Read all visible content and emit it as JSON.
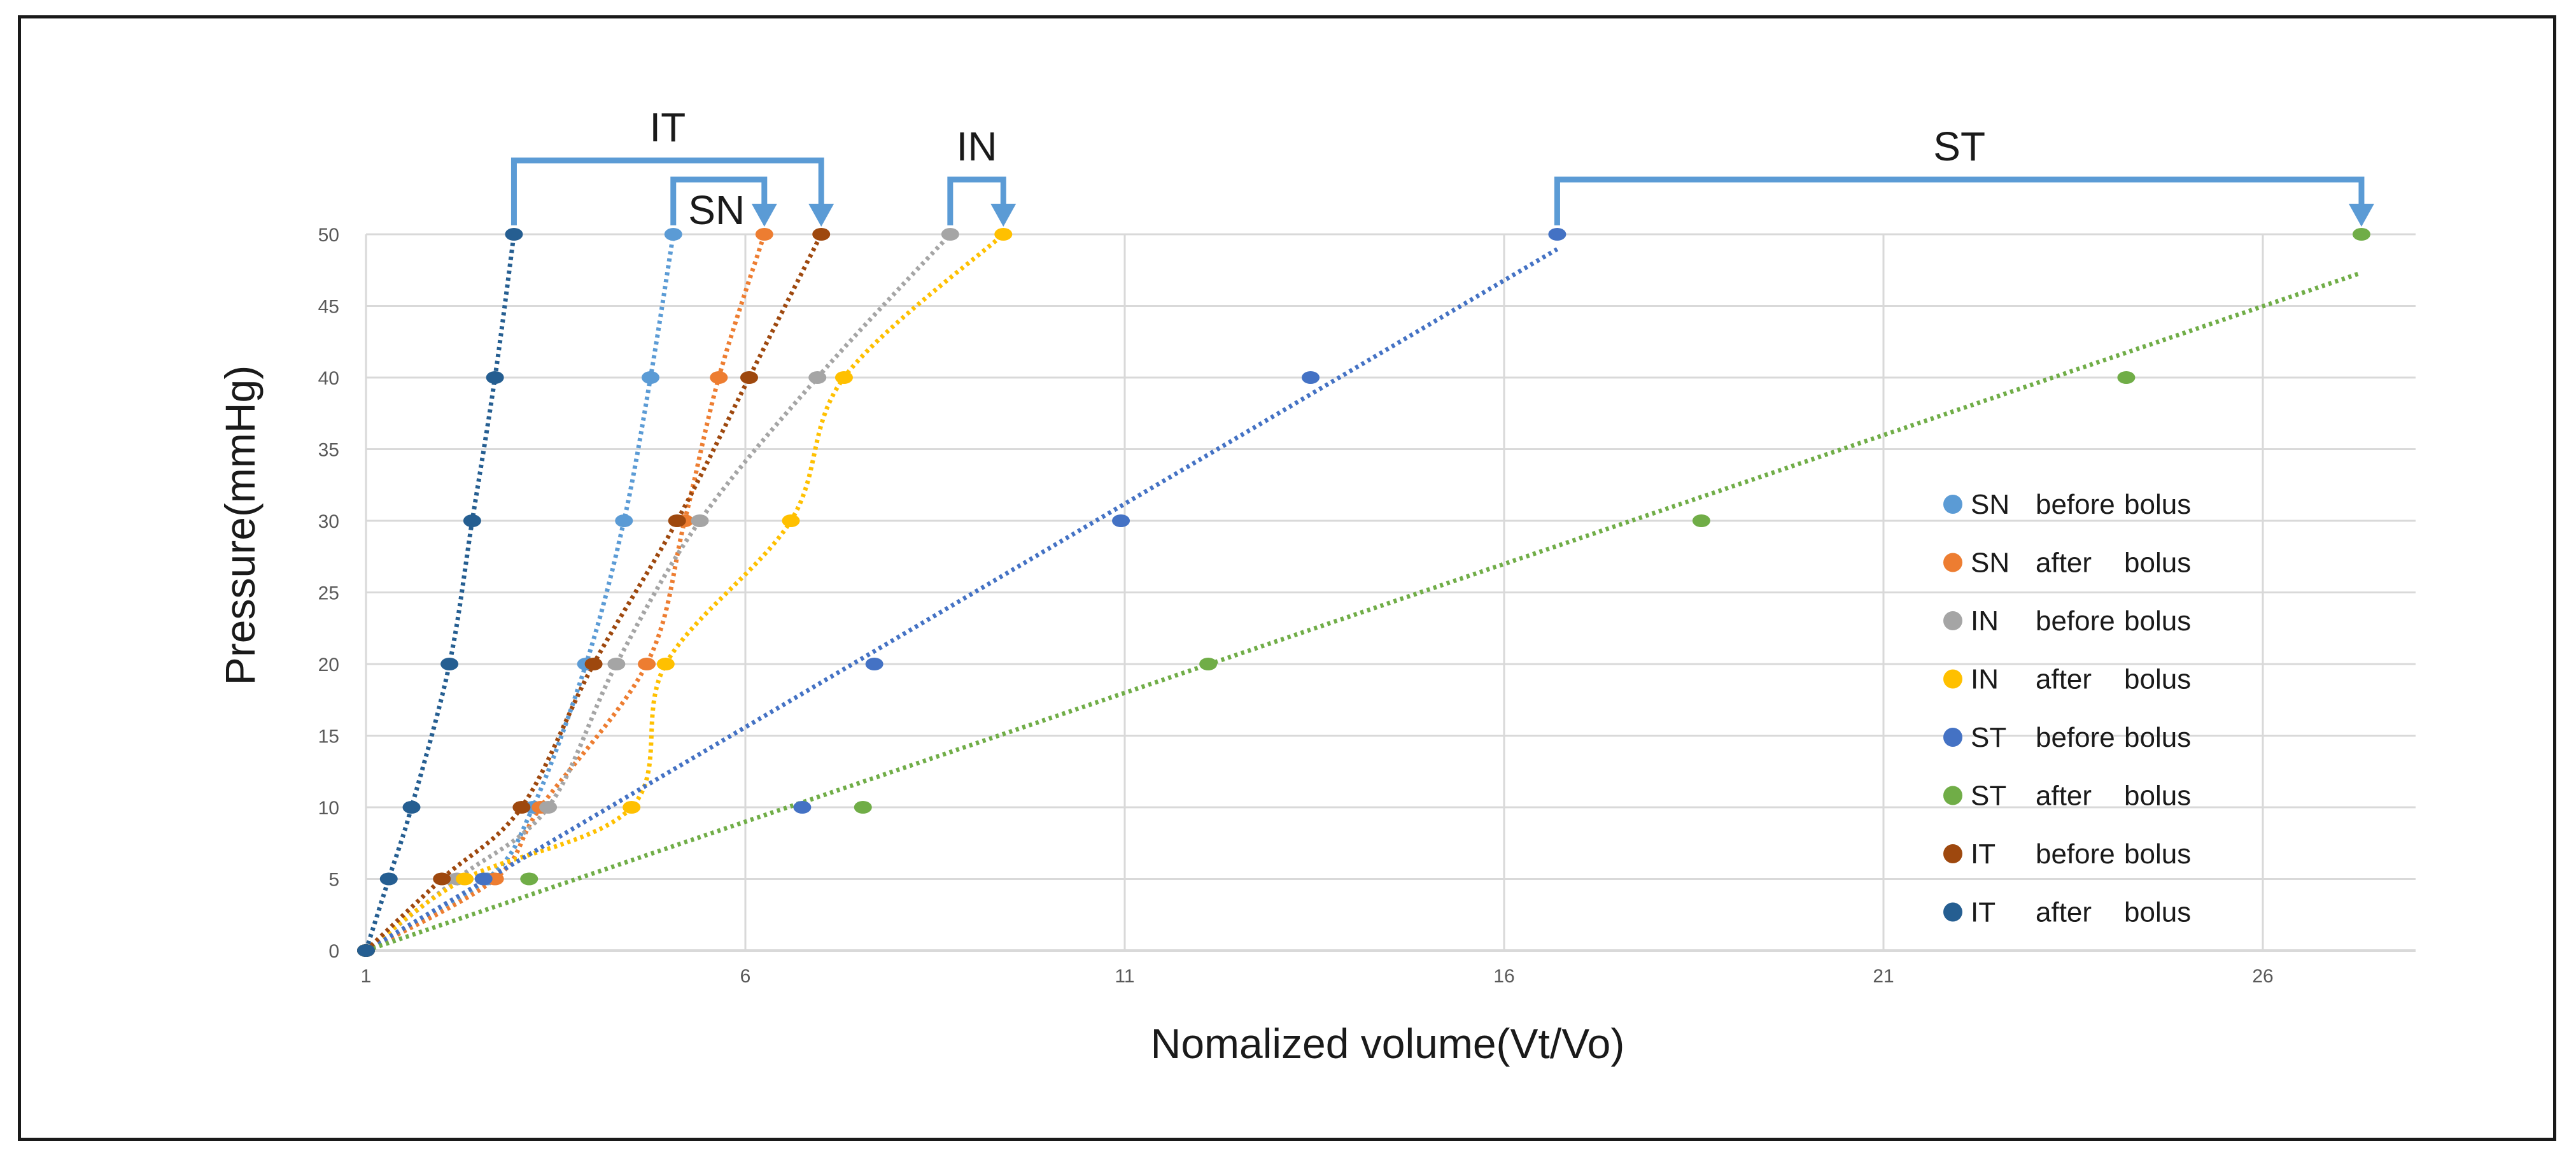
{
  "chart_data": {
    "type": "scatter",
    "title": "",
    "xlabel": "Nomalized volume(Vt/Vo)",
    "ylabel": "Pressure(mmHg)",
    "xlim": [
      1,
      27.5
    ],
    "ylim": [
      0,
      50
    ],
    "xticks": [
      1,
      6,
      11,
      16,
      21,
      26
    ],
    "yticks": [
      0,
      5,
      10,
      15,
      20,
      25,
      30,
      35,
      40,
      45,
      50
    ],
    "grid": true,
    "legend_position": "right",
    "series": [
      {
        "name": "SN before bolus",
        "legend": [
          "SN",
          "before",
          "bolus"
        ],
        "color": "#5b9bd5",
        "trend": "exponential",
        "points": [
          [
            1,
            0
          ],
          [
            2.6,
            5
          ],
          [
            3.2,
            10
          ],
          [
            3.9,
            20
          ],
          [
            4.4,
            30
          ],
          [
            4.75,
            40
          ],
          [
            5.05,
            50
          ]
        ]
      },
      {
        "name": "SN after bolus",
        "legend": [
          "SN",
          "after",
          "bolus"
        ],
        "color": "#ed7d31",
        "trend": "exponential",
        "points": [
          [
            1,
            0
          ],
          [
            2.7,
            5
          ],
          [
            3.3,
            10
          ],
          [
            4.7,
            20
          ],
          [
            5.2,
            30
          ],
          [
            5.65,
            40
          ],
          [
            6.25,
            50
          ]
        ]
      },
      {
        "name": "IN before bolus",
        "legend": [
          "IN",
          "before",
          "bolus"
        ],
        "color": "#a5a5a5",
        "trend": "exponential",
        "points": [
          [
            1,
            0
          ],
          [
            2.2,
            5
          ],
          [
            3.4,
            10
          ],
          [
            4.3,
            20
          ],
          [
            5.4,
            30
          ],
          [
            6.95,
            40
          ],
          [
            8.7,
            50
          ]
        ]
      },
      {
        "name": "IN after bolus",
        "legend": [
          "IN",
          "after",
          "bolus"
        ],
        "color": "#ffc000",
        "trend": "exponential",
        "points": [
          [
            1,
            0
          ],
          [
            2.3,
            5
          ],
          [
            4.5,
            10
          ],
          [
            4.95,
            20
          ],
          [
            6.6,
            30
          ],
          [
            7.3,
            40
          ],
          [
            9.4,
            50
          ]
        ]
      },
      {
        "name": "ST before bolus",
        "legend": [
          "ST",
          "before",
          "bolus"
        ],
        "color": "#4472c4",
        "trend": "linear",
        "points": [
          [
            1,
            0
          ],
          [
            2.55,
            5
          ],
          [
            6.75,
            10
          ],
          [
            7.7,
            20
          ],
          [
            10.95,
            30
          ],
          [
            13.45,
            40
          ],
          [
            16.7,
            50
          ]
        ]
      },
      {
        "name": "ST after bolus",
        "legend": [
          "ST",
          "after",
          "bolus"
        ],
        "color": "#70ad47",
        "trend": "linear",
        "points": [
          [
            1,
            0
          ],
          [
            3.15,
            5
          ],
          [
            7.55,
            10
          ],
          [
            12.1,
            20
          ],
          [
            18.6,
            30
          ],
          [
            24.2,
            40
          ],
          [
            27.3,
            50
          ]
        ]
      },
      {
        "name": "IT before bolus",
        "legend": [
          "IT",
          "before",
          "bolus"
        ],
        "color": "#9e480e",
        "trend": "exponential",
        "points": [
          [
            1,
            0
          ],
          [
            2.0,
            5
          ],
          [
            3.05,
            10
          ],
          [
            4.0,
            20
          ],
          [
            5.1,
            30
          ],
          [
            6.05,
            40
          ],
          [
            7.0,
            50
          ]
        ]
      },
      {
        "name": "IT after bolus",
        "legend": [
          "IT",
          "after",
          "bolus"
        ],
        "color": "#255e91",
        "trend": "exponential",
        "points": [
          [
            1,
            0
          ],
          [
            1.3,
            5
          ],
          [
            1.6,
            10
          ],
          [
            2.1,
            20
          ],
          [
            2.4,
            30
          ],
          [
            2.7,
            40
          ],
          [
            2.95,
            50
          ]
        ]
      }
    ],
    "annotations": [
      {
        "label": "IT",
        "from_x": 2.95,
        "to_x": 7.0,
        "level": 2
      },
      {
        "label": "SN",
        "from_x": 5.05,
        "to_x": 6.25,
        "level": 1
      },
      {
        "label": "IN",
        "from_x": 8.7,
        "to_x": 9.4,
        "level": 1
      },
      {
        "label": "ST",
        "from_x": 16.7,
        "to_x": 27.3,
        "level": 1
      }
    ],
    "annotation_color": "#5b9bd5"
  }
}
